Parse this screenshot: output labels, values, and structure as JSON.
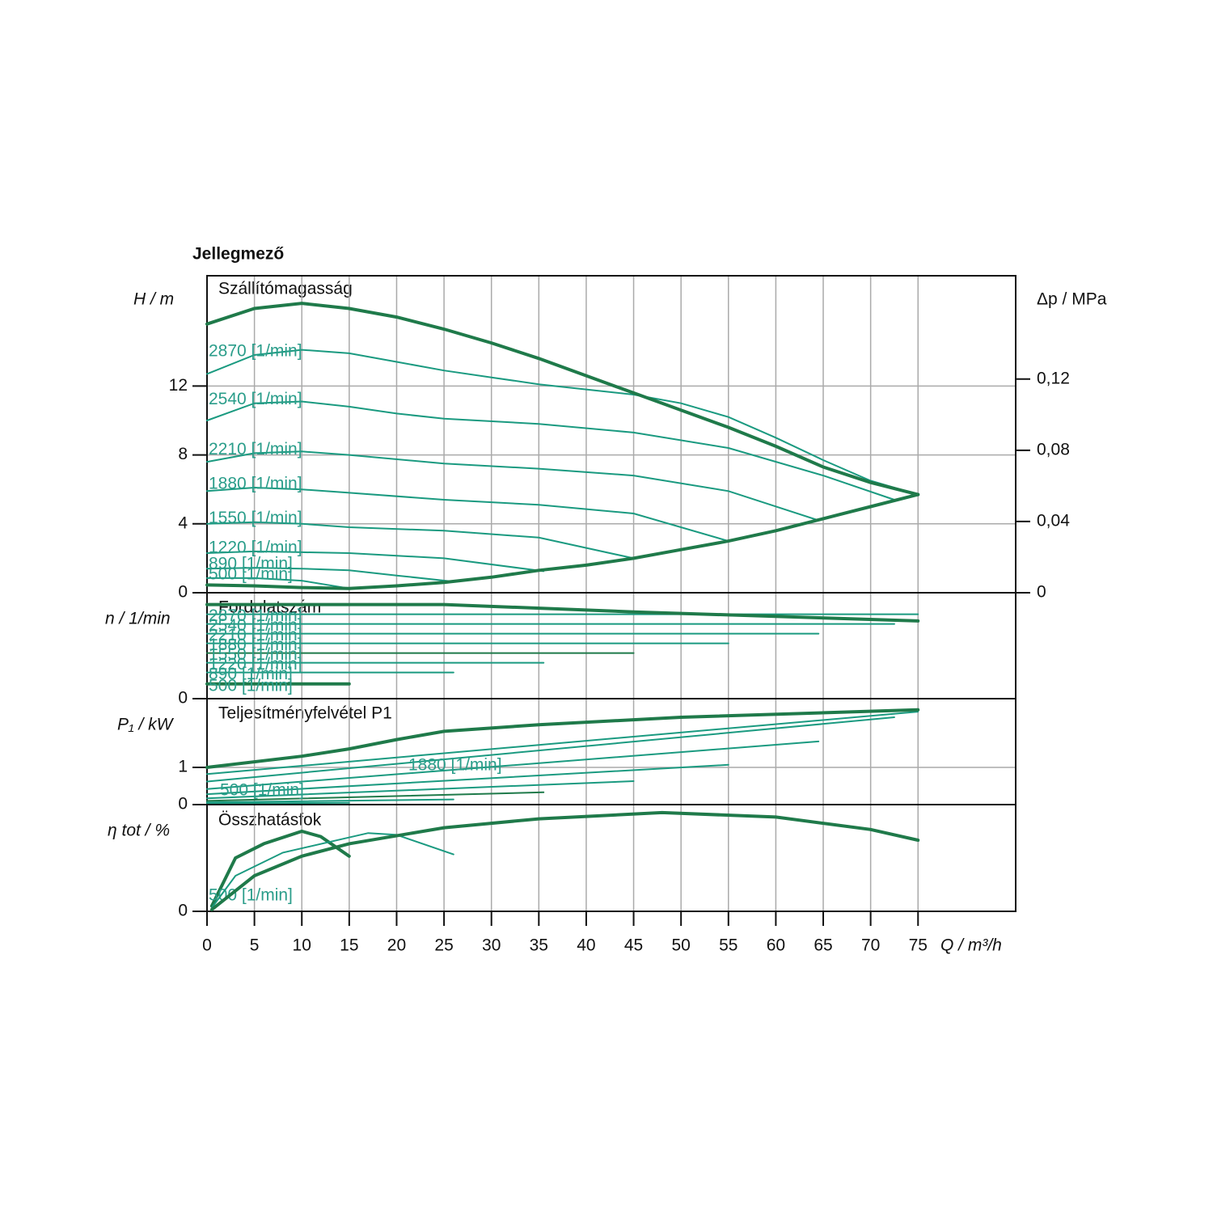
{
  "chart_data": [
    {
      "type": "line",
      "title": "Jellegmező",
      "panel_title": "Szállítómagasság",
      "ylabel": "H / m",
      "y2label": "Δp / MPa",
      "xlim": [
        0,
        85.3
      ],
      "ylim": [
        0,
        18.4
      ],
      "yticks": [
        0,
        4,
        8,
        12
      ],
      "y2lim": [
        0,
        0.178
      ],
      "y2ticks": [
        0,
        {
          "value": 0.04,
          "label": "0,04"
        },
        {
          "value": 0.08,
          "label": "0,08"
        },
        {
          "value": 0.12,
          "label": "0,12"
        }
      ],
      "series": [
        {
          "name": "2870 [1/min]",
          "color": "#1a9a80",
          "x": [
            0,
            5,
            10,
            15,
            20,
            25,
            30,
            35,
            40,
            45,
            50,
            55,
            60,
            65,
            70,
            75
          ],
          "values": [
            12.7,
            13.8,
            14.1,
            13.9,
            13.4,
            12.9,
            12.5,
            12.1,
            11.8,
            11.5,
            11.0,
            10.2,
            9.0,
            7.7,
            6.5,
            5.7
          ]
        },
        {
          "name": "2540 [1/min]",
          "color": "#1a9a80",
          "x": [
            0,
            5,
            10,
            15,
            20,
            25,
            35,
            45,
            55,
            65,
            72.5
          ],
          "values": [
            10.0,
            11.0,
            11.1,
            10.8,
            10.4,
            10.1,
            9.8,
            9.3,
            8.4,
            6.8,
            5.4
          ]
        },
        {
          "name": "2210 [1/min]",
          "color": "#1a9a80",
          "x": [
            0,
            5,
            10,
            15,
            25,
            35,
            45,
            55,
            64.5
          ],
          "values": [
            7.6,
            8.1,
            8.2,
            8.0,
            7.5,
            7.2,
            6.8,
            5.9,
            4.2
          ]
        },
        {
          "name": "1880 [1/min]",
          "color": "#1a9a80",
          "x": [
            0,
            5,
            10,
            15,
            25,
            35,
            45,
            55
          ],
          "values": [
            5.9,
            6.1,
            6.0,
            5.8,
            5.4,
            5.1,
            4.6,
            3.0
          ]
        },
        {
          "name": "1550 [1/min]",
          "color": "#1a9a80",
          "x": [
            0,
            5,
            10,
            15,
            25,
            35,
            45
          ],
          "values": [
            4.0,
            4.1,
            4.0,
            3.8,
            3.6,
            3.2,
            2.0
          ]
        },
        {
          "name": "1220 [1/min]",
          "color": "#1a9a80",
          "x": [
            0,
            5,
            10,
            15,
            25,
            35.5
          ],
          "values": [
            2.3,
            2.4,
            2.35,
            2.3,
            2.0,
            1.25
          ]
        },
        {
          "name": "890 [1/min]",
          "color": "#1a9a80",
          "x": [
            0,
            5,
            10,
            15,
            20,
            26
          ],
          "values": [
            1.4,
            1.45,
            1.4,
            1.3,
            1.0,
            0.65
          ]
        },
        {
          "name": "500 [1/min]",
          "color": "#1a9a80",
          "x": [
            0,
            5,
            10,
            15
          ],
          "values": [
            0.85,
            0.85,
            0.7,
            0.25
          ]
        },
        {
          "color": "#1f7a4a",
          "bold": true,
          "x": [
            0,
            5,
            10,
            15,
            20,
            25,
            30,
            35,
            40,
            45,
            50,
            55,
            60,
            65,
            70,
            75
          ],
          "values": [
            15.6,
            16.5,
            16.8,
            16.5,
            16.0,
            15.3,
            14.5,
            13.6,
            12.6,
            11.6,
            10.6,
            9.6,
            8.5,
            7.3,
            6.4,
            5.7
          ]
        },
        {
          "color": "#1f7a4a",
          "bold": true,
          "x": [
            0,
            5,
            10,
            15,
            20,
            25,
            30,
            35,
            40,
            45,
            50,
            55,
            60,
            65,
            70,
            75
          ],
          "values": [
            0.45,
            0.4,
            0.3,
            0.25,
            0.4,
            0.6,
            0.9,
            1.3,
            1.6,
            2.0,
            2.5,
            3.0,
            3.6,
            4.3,
            5.0,
            5.7
          ]
        }
      ]
    },
    {
      "type": "line",
      "panel_title": "Fordulatszám",
      "ylabel": "n / 1/min",
      "xlim": [
        0,
        85.3
      ],
      "ylim": [
        0,
        3600
      ],
      "yticks": [
        0
      ],
      "series": [
        {
          "name": "2870 [1/min]",
          "color": "#1a9a80",
          "x": [
            0,
            75
          ],
          "values": [
            2870,
            2870
          ]
        },
        {
          "name": "2540 [1/min]",
          "color": "#1a9a80",
          "x": [
            0,
            72.5
          ],
          "values": [
            2540,
            2540
          ]
        },
        {
          "name": "2210 [1/min]",
          "color": "#1a9a80",
          "x": [
            0,
            64.5
          ],
          "values": [
            2210,
            2210
          ]
        },
        {
          "name": "1880 [1/min]",
          "color": "#1a9a80",
          "x": [
            0,
            55
          ],
          "values": [
            1880,
            1880
          ]
        },
        {
          "name": "1550 [1/min]",
          "color": "#1f7a4a",
          "x": [
            0,
            45
          ],
          "values": [
            1550,
            1550
          ]
        },
        {
          "name": "1220 [1/min]",
          "color": "#1a9a80",
          "x": [
            0,
            35.5
          ],
          "values": [
            1220,
            1220
          ]
        },
        {
          "name": "890 [1/min]",
          "color": "#1a9a80",
          "x": [
            0,
            26
          ],
          "values": [
            890,
            890
          ]
        },
        {
          "name": "500 [1/min]",
          "color": "#1f7a4a",
          "bold": true,
          "x": [
            0,
            15
          ],
          "values": [
            500,
            500
          ]
        },
        {
          "color": "#1f7a4a",
          "bold": true,
          "x": [
            0,
            25,
            45,
            75
          ],
          "values": [
            3200,
            3200,
            2950,
            2640
          ]
        }
      ]
    },
    {
      "type": "line",
      "panel_title": "Teljesítményfelvétel P1",
      "ylabel": "P₁ / kW",
      "xlim": [
        0,
        85.3
      ],
      "ylim": [
        0,
        2.85
      ],
      "yticks": [
        0,
        1
      ],
      "series": [
        {
          "color": "#1a9a80",
          "x": [
            0,
            75
          ],
          "values": [
            0.82,
            2.5
          ]
        },
        {
          "color": "#1a9a80",
          "x": [
            0,
            72.5
          ],
          "values": [
            0.62,
            2.35
          ]
        },
        {
          "color": "#1a9a80",
          "x": [
            0,
            64.5
          ],
          "values": [
            0.42,
            1.7
          ]
        },
        {
          "name": "1880 [1/min]",
          "color": "#1a9a80",
          "x": [
            0,
            55
          ],
          "values": [
            0.28,
            1.07
          ]
        },
        {
          "color": "#1a9a80",
          "x": [
            0,
            45
          ],
          "values": [
            0.17,
            0.63
          ]
        },
        {
          "color": "#1f7a4a",
          "x": [
            0,
            35.5
          ],
          "values": [
            0.1,
            0.33
          ]
        },
        {
          "color": "#1a9a80",
          "x": [
            0,
            26
          ],
          "values": [
            0.06,
            0.14
          ]
        },
        {
          "name": "500 [1/min]",
          "color": "#1a9a80",
          "x": [
            0,
            15
          ],
          "values": [
            0.03,
            0.05
          ]
        },
        {
          "color": "#1f7a4a",
          "bold": true,
          "x": [
            0,
            10,
            15,
            20,
            25,
            35,
            50,
            75
          ],
          "values": [
            1.0,
            1.3,
            1.5,
            1.75,
            1.97,
            2.15,
            2.35,
            2.55
          ]
        }
      ]
    },
    {
      "type": "line",
      "panel_title": "Összhatásfok",
      "ylabel": "η tot / %",
      "xlabel": "Q / m³/h",
      "xlim": [
        0,
        85.3
      ],
      "ylim": [
        0,
        60
      ],
      "yticks": [
        0
      ],
      "xticks": [
        0,
        5,
        10,
        15,
        20,
        25,
        30,
        35,
        40,
        45,
        50,
        55,
        60,
        65,
        70,
        75
      ],
      "series": [
        {
          "name": "500 [1/min]",
          "color": "#1f7a4a",
          "bold": true,
          "x": [
            0.5,
            3,
            6,
            10,
            12,
            15
          ],
          "values": [
            3,
            30,
            38,
            45,
            42,
            31
          ]
        },
        {
          "color": "#1a9a80",
          "x": [
            0.5,
            3,
            8,
            17,
            20,
            26
          ],
          "values": [
            2,
            20,
            33,
            44,
            43,
            32
          ]
        },
        {
          "color": "#1f7a4a",
          "bold": true,
          "x": [
            0.5,
            5,
            10,
            15,
            25,
            35,
            48,
            60,
            70,
            75
          ],
          "values": [
            1,
            20,
            31,
            38,
            47,
            52,
            55.5,
            53,
            46,
            40
          ]
        }
      ]
    }
  ]
}
